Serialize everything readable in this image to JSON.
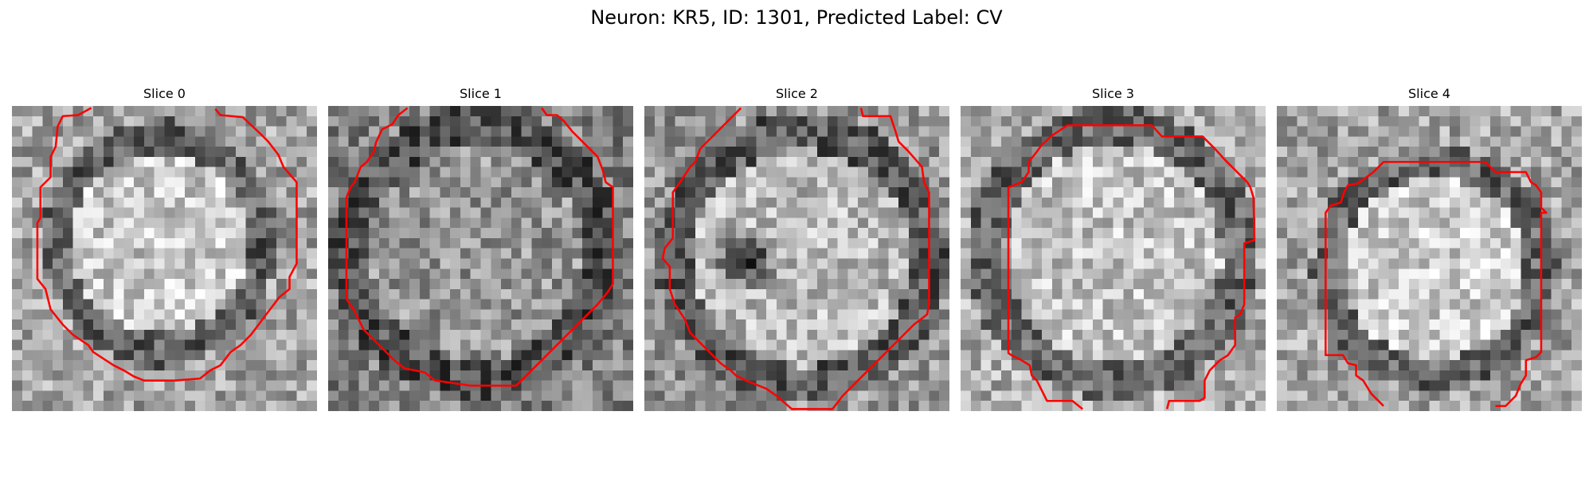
{
  "figure": {
    "title": "Neuron: KR5, ID: 1301, Predicted Label: CV"
  },
  "colors": {
    "contour": "#ff0000",
    "background": "#ffffff"
  },
  "slices": [
    {
      "title": "Slice 0"
    },
    {
      "title": "Slice 1"
    },
    {
      "title": "Slice 2"
    },
    {
      "title": "Slice 3"
    },
    {
      "title": "Slice 4"
    }
  ]
}
